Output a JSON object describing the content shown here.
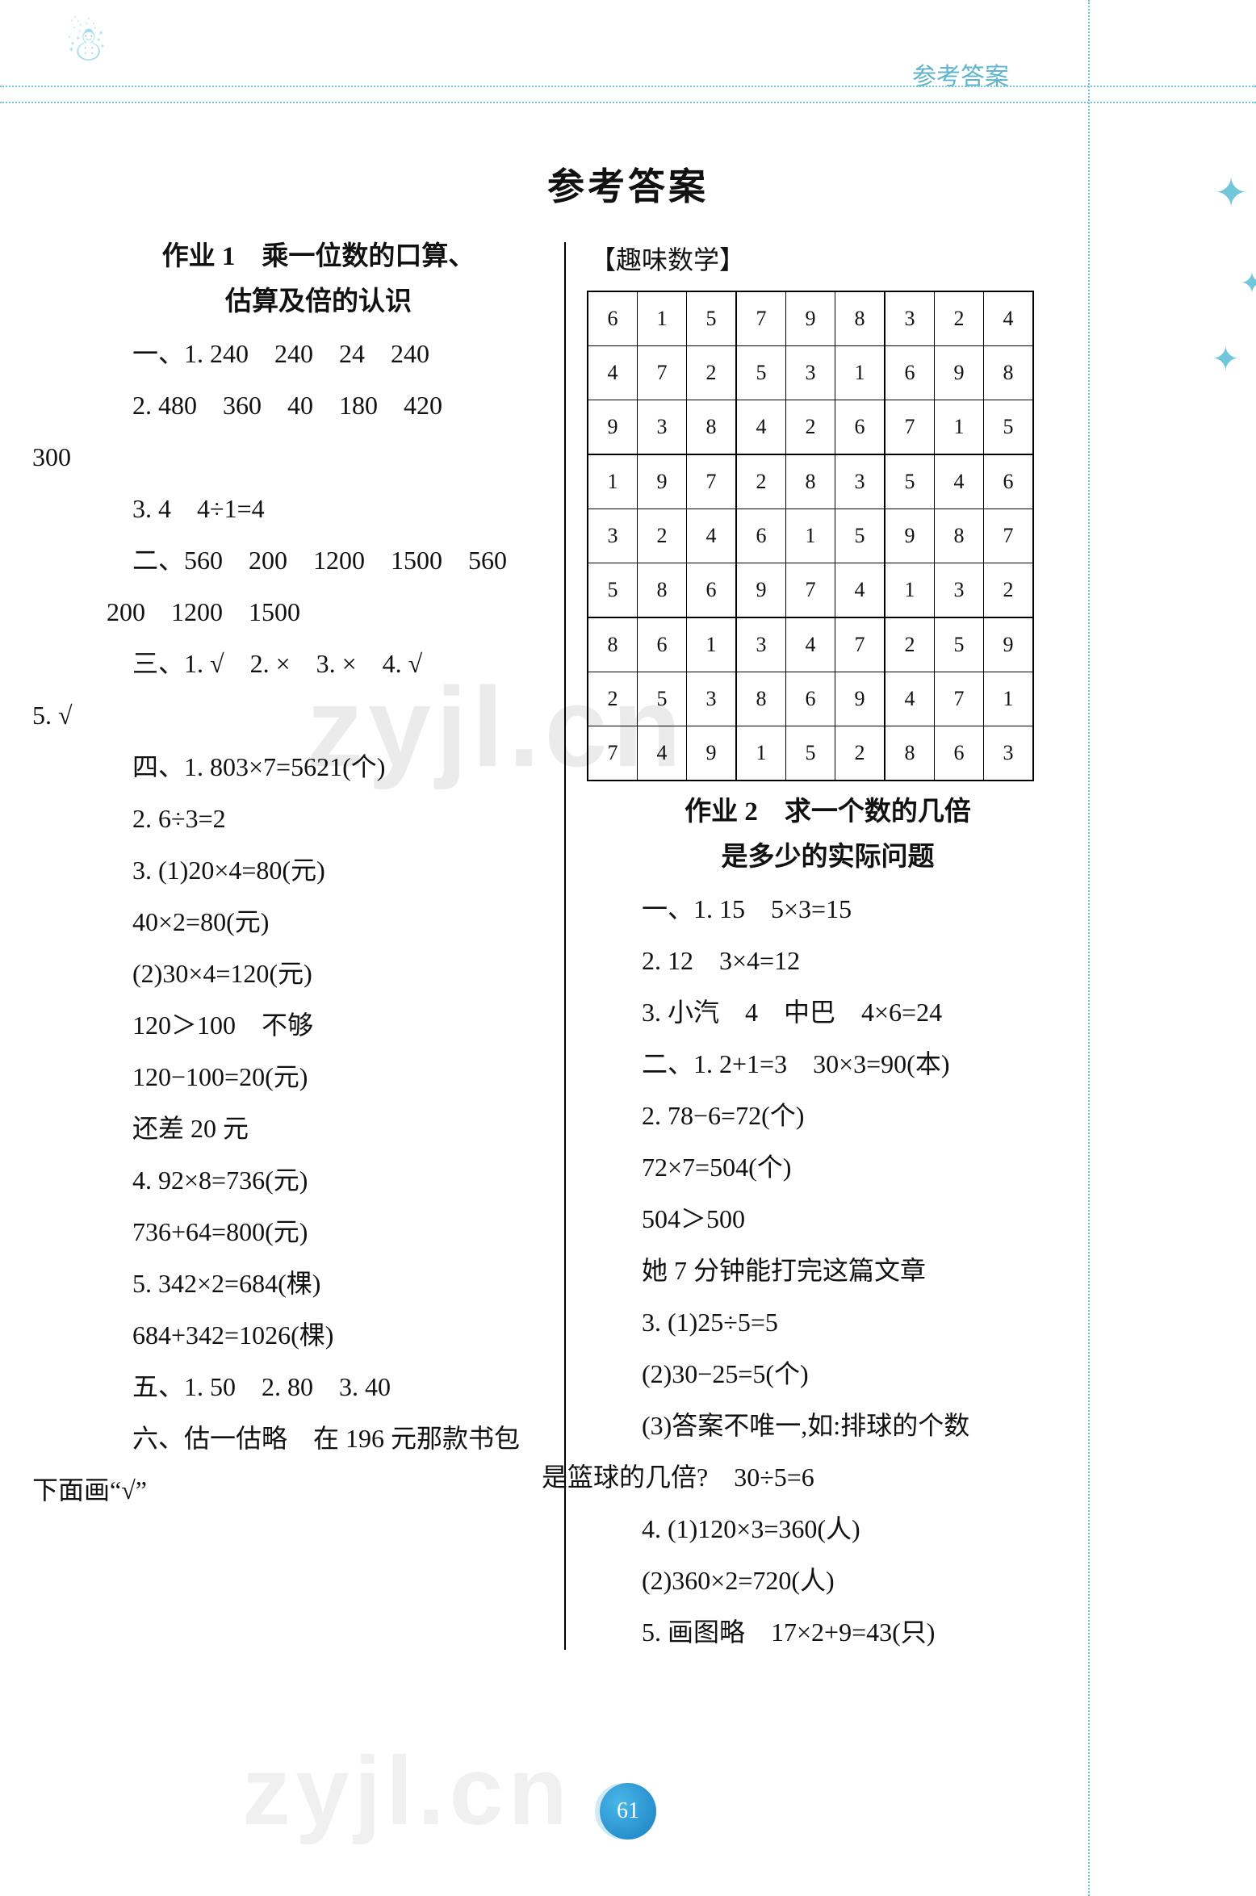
{
  "header": {
    "label": "参考答案",
    "snowman_glyph": "☃",
    "star_glyph": "✦"
  },
  "title": "参考答案",
  "left": {
    "sec_title_l1": "作业 1　乘一位数的口算、",
    "sec_title_l2": "估算及倍的认识",
    "p1": "一、1. 240　240　24　240",
    "p2": "2. 480　360　40　180　420",
    "p2b": "300",
    "p3": "3. 4　4÷1=4",
    "p4": "二、560　200　1200　1500　560",
    "p4b": "200　1200　1500",
    "p5": "三、1. √　2. ×　3. ×　4. √",
    "p5b": "5. √",
    "p6": "四、1. 803×7=5621(个)",
    "p7": "2. 6÷3=2",
    "p8": "3. (1)20×4=80(元)",
    "p9": "40×2=80(元)",
    "p10": "(2)30×4=120(元)",
    "p11": "120＞100　不够",
    "p12": "120−100=20(元)",
    "p13": "还差 20 元",
    "p14": "4. 92×8=736(元)",
    "p15": "736+64=800(元)",
    "p16": "5. 342×2=684(棵)",
    "p17": "684+342=1026(棵)",
    "p18": "五、1. 50　2. 80　3. 40",
    "p19": "六、估一估略　在 196 元那款书包",
    "p20": "下面画“√”"
  },
  "right": {
    "fun_label": "【趣味数学】",
    "sudoku": {
      "rows": [
        [
          "6",
          "1",
          "5",
          "7",
          "9",
          "8",
          "3",
          "2",
          "4"
        ],
        [
          "4",
          "7",
          "2",
          "5",
          "3",
          "1",
          "6",
          "9",
          "8"
        ],
        [
          "9",
          "3",
          "8",
          "4",
          "2",
          "6",
          "7",
          "1",
          "5"
        ],
        [
          "1",
          "9",
          "7",
          "2",
          "8",
          "3",
          "5",
          "4",
          "6"
        ],
        [
          "3",
          "2",
          "4",
          "6",
          "1",
          "5",
          "9",
          "8",
          "7"
        ],
        [
          "5",
          "8",
          "6",
          "9",
          "7",
          "4",
          "1",
          "3",
          "2"
        ],
        [
          "8",
          "6",
          "1",
          "3",
          "4",
          "7",
          "2",
          "5",
          "9"
        ],
        [
          "2",
          "5",
          "3",
          "8",
          "6",
          "9",
          "4",
          "7",
          "1"
        ],
        [
          "7",
          "4",
          "9",
          "1",
          "5",
          "2",
          "8",
          "6",
          "3"
        ]
      ],
      "border_color": "#000000"
    },
    "sec_title_l1": "作业 2　求一个数的几倍",
    "sec_title_l2": "是多少的实际问题",
    "p1": "一、1. 15　5×3=15",
    "p2": "2. 12　3×4=12",
    "p3": "3. 小汽　4　中巴　4×6=24",
    "p4": "二、1. 2+1=3　30×3=90(本)",
    "p5": "2. 78−6=72(个)",
    "p6": "72×7=504(个)",
    "p7": "504＞500",
    "p8": "她 7 分钟能打完这篇文章",
    "p9": "3. (1)25÷5=5",
    "p10": "(2)30−25=5(个)",
    "p11": "(3)答案不唯一,如:排球的个数",
    "p12": "是篮球的几倍?　30÷5=6",
    "p13": "4. (1)120×3=360(人)",
    "p14": "(2)360×2=720(人)",
    "p15": "5. 画图略　17×2+9=43(只)"
  },
  "page_number": "61",
  "watermark": "zyjl.cn",
  "colors": {
    "accent": "#6fc7d9",
    "text": "#111111",
    "badge": "#1a7fc1"
  }
}
